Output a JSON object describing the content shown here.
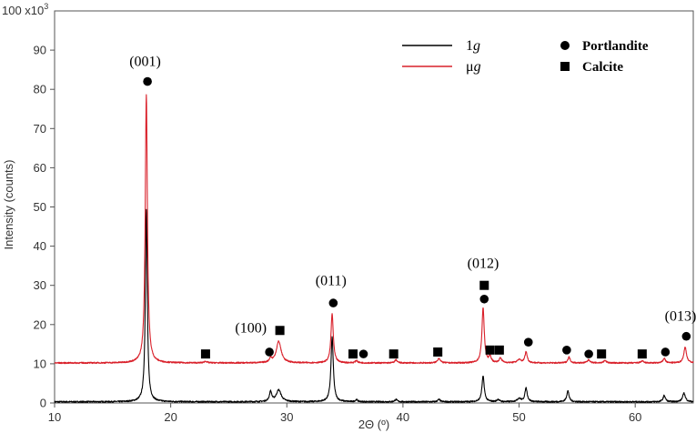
{
  "chart_data": {
    "type": "line",
    "xlabel": "2Θ (º)",
    "ylabel": "Intensity (counts)",
    "y_multiplier": "100 x10",
    "y_multiplier_exp": "3",
    "xlim": [
      10,
      65
    ],
    "ylim": [
      0,
      100
    ],
    "x_ticks": [
      10,
      20,
      30,
      40,
      50,
      60
    ],
    "y_ticks": [
      0,
      10,
      20,
      30,
      40,
      50,
      60,
      70,
      80,
      90
    ],
    "grid": false,
    "legend_position": "top-right",
    "series": [
      {
        "name_base": "1",
        "name_italic": "g",
        "color": "#000000",
        "baseline": 0.3,
        "peaks": [
          {
            "x": 17.9,
            "height": 49,
            "width": 0.1
          },
          {
            "x": 28.6,
            "height": 2.5,
            "width": 0.12
          },
          {
            "x": 29.3,
            "height": 3.0,
            "width": 0.25
          },
          {
            "x": 33.9,
            "height": 16.5,
            "width": 0.12
          },
          {
            "x": 36.0,
            "height": 0.5,
            "width": 0.12
          },
          {
            "x": 39.4,
            "height": 0.6,
            "width": 0.12
          },
          {
            "x": 43.1,
            "height": 0.6,
            "width": 0.12
          },
          {
            "x": 46.9,
            "height": 6.5,
            "width": 0.12
          },
          {
            "x": 48.2,
            "height": 0.6,
            "width": 0.12
          },
          {
            "x": 50.0,
            "height": 0.8,
            "width": 0.2
          },
          {
            "x": 50.6,
            "height": 3.5,
            "width": 0.12
          },
          {
            "x": 54.2,
            "height": 2.8,
            "width": 0.12
          },
          {
            "x": 62.5,
            "height": 1.6,
            "width": 0.12
          },
          {
            "x": 64.2,
            "height": 2.2,
            "width": 0.14
          }
        ]
      },
      {
        "name_base": "μ",
        "name_italic": "g",
        "color": "#d9202a",
        "baseline": 10.2,
        "peaks": [
          {
            "x": 17.9,
            "height": 68.5,
            "width": 0.11
          },
          {
            "x": 23.0,
            "height": 0.4,
            "width": 0.15
          },
          {
            "x": 28.6,
            "height": 1.0,
            "width": 0.12
          },
          {
            "x": 29.3,
            "height": 5.5,
            "width": 0.25
          },
          {
            "x": 33.9,
            "height": 12.5,
            "width": 0.12
          },
          {
            "x": 36.0,
            "height": 0.6,
            "width": 0.12
          },
          {
            "x": 39.4,
            "height": 0.8,
            "width": 0.12
          },
          {
            "x": 43.1,
            "height": 1.2,
            "width": 0.14
          },
          {
            "x": 46.9,
            "height": 14.0,
            "width": 0.12
          },
          {
            "x": 47.5,
            "height": 1.5,
            "width": 0.12
          },
          {
            "x": 48.4,
            "height": 1.2,
            "width": 0.14
          },
          {
            "x": 50.0,
            "height": 0.8,
            "width": 0.2
          },
          {
            "x": 50.6,
            "height": 2.8,
            "width": 0.12
          },
          {
            "x": 54.3,
            "height": 1.5,
            "width": 0.12
          },
          {
            "x": 56.0,
            "height": 0.8,
            "width": 0.14
          },
          {
            "x": 57.4,
            "height": 0.6,
            "width": 0.14
          },
          {
            "x": 60.6,
            "height": 0.5,
            "width": 0.14
          },
          {
            "x": 62.5,
            "height": 1.2,
            "width": 0.12
          },
          {
            "x": 64.3,
            "height": 4.0,
            "width": 0.14
          }
        ]
      }
    ],
    "marker_legend": [
      {
        "name": "Portlandite",
        "shape": "circle"
      },
      {
        "name": "Calcite",
        "shape": "square"
      }
    ],
    "markers": [
      {
        "shape": "circle",
        "x": 18.0,
        "y": 82
      },
      {
        "shape": "square",
        "x": 23.0,
        "y": 12.5
      },
      {
        "shape": "circle",
        "x": 28.5,
        "y": 13
      },
      {
        "shape": "square",
        "x": 29.4,
        "y": 18.5
      },
      {
        "shape": "circle",
        "x": 34.0,
        "y": 25.5
      },
      {
        "shape": "square",
        "x": 35.7,
        "y": 12.5
      },
      {
        "shape": "circle",
        "x": 36.6,
        "y": 12.5
      },
      {
        "shape": "square",
        "x": 39.2,
        "y": 12.5
      },
      {
        "shape": "square",
        "x": 43.0,
        "y": 13
      },
      {
        "shape": "square",
        "x": 47.0,
        "y": 30
      },
      {
        "shape": "circle",
        "x": 47.0,
        "y": 26.5
      },
      {
        "shape": "square",
        "x": 47.5,
        "y": 13.5
      },
      {
        "shape": "square",
        "x": 48.3,
        "y": 13.5
      },
      {
        "shape": "circle",
        "x": 50.8,
        "y": 15.5
      },
      {
        "shape": "circle",
        "x": 54.1,
        "y": 13.5
      },
      {
        "shape": "circle",
        "x": 56.0,
        "y": 12.5
      },
      {
        "shape": "square",
        "x": 57.1,
        "y": 12.5
      },
      {
        "shape": "square",
        "x": 60.6,
        "y": 12.5
      },
      {
        "shape": "circle",
        "x": 62.6,
        "y": 13
      },
      {
        "shape": "circle",
        "x": 64.4,
        "y": 17
      }
    ],
    "annotations": [
      {
        "text": "(001)",
        "x": 17.8,
        "y": 86
      },
      {
        "text": "(100)",
        "x": 26.9,
        "y": 18
      },
      {
        "text": "(011)",
        "x": 33.8,
        "y": 30
      },
      {
        "text": "(012)",
        "x": 46.9,
        "y": 34.5
      },
      {
        "text": "(013)",
        "x": 63.9,
        "y": 21
      }
    ]
  }
}
